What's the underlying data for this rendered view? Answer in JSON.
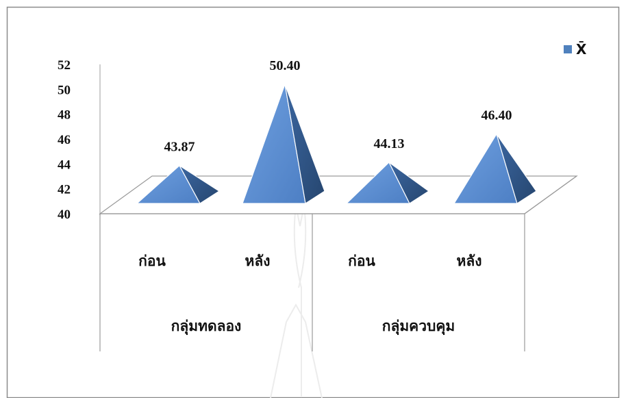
{
  "chart_data": {
    "type": "bar",
    "shape": "pyramid-3d",
    "categories": [
      "ก่อน",
      "หลัง",
      "ก่อน",
      "หลัง"
    ],
    "groups": [
      {
        "label": "กลุ่มทดลอง",
        "categories": [
          "ก่อน",
          "หลัง"
        ]
      },
      {
        "label": "กลุ่มควบคุม",
        "categories": [
          "ก่อน",
          "หลัง"
        ]
      }
    ],
    "series": [
      {
        "name": "X̄",
        "values": [
          43.87,
          50.4,
          44.13,
          46.4
        ]
      }
    ],
    "data_labels": [
      "43.87",
      "50.40",
      "44.13",
      "46.40"
    ],
    "ylim": [
      40,
      52
    ],
    "yticks": [
      40,
      42,
      44,
      46,
      48,
      50,
      52
    ],
    "title": "",
    "xlabel": "",
    "ylabel": "",
    "legend": {
      "position": "top-right",
      "text": "X̄"
    },
    "colors": {
      "front": "#5b8fd4",
      "side": "#2f5686",
      "legend_swatch": "#4f81bd",
      "frame": "#8c8c8c",
      "axis": "#bdbdbd"
    },
    "grid": false
  }
}
